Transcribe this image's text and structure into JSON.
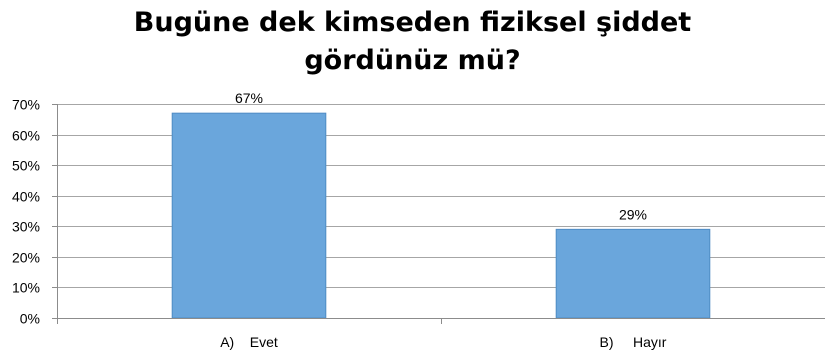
{
  "chart_data": {
    "type": "bar",
    "title": "Bugüne dek kimseden fiziksel şiddet gördünüz mü?",
    "categories": [
      "A)    Evet",
      "B)     Hayır"
    ],
    "values": [
      67,
      29
    ],
    "data_labels": [
      "67%",
      "29%"
    ],
    "xlabel": "",
    "ylabel": "",
    "ylim": [
      0,
      70
    ],
    "yticks": [
      0,
      10,
      20,
      30,
      40,
      50,
      60,
      70
    ],
    "ytick_labels": [
      "0%",
      "10%",
      "20%",
      "30%",
      "40%",
      "50%",
      "60%",
      "70%"
    ],
    "grid": true,
    "legend": "none",
    "bar_color": "#6aa6dc",
    "bar_edge_color": "#4f8cc4",
    "grid_color": "#a6a6a6"
  }
}
